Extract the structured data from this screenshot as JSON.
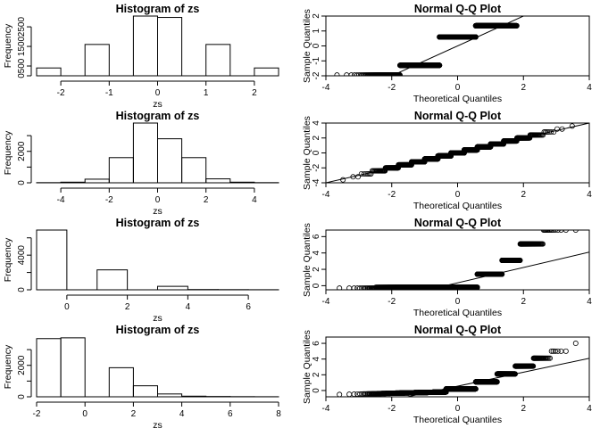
{
  "chart_data": [
    {
      "type": "bar",
      "title": "Histogram of zs",
      "xlabel": "zs",
      "ylabel": "Frequency",
      "bins": [
        [
          -2.5,
          -2
        ],
        [
          -2,
          -1.5
        ],
        [
          -1.5,
          -1
        ],
        [
          -1,
          -0.5
        ],
        [
          -0.5,
          0
        ],
        [
          0,
          0.5
        ],
        [
          0.5,
          1
        ],
        [
          1,
          1.5
        ],
        [
          1.5,
          2
        ],
        [
          2,
          2.5
        ]
      ],
      "values": [
        400,
        0,
        1600,
        0,
        3050,
        2980,
        0,
        1600,
        0,
        400
      ],
      "xlim": [
        -2.5,
        2.5
      ],
      "ylim": [
        0,
        3050
      ],
      "xticks": [
        -2,
        -1,
        0,
        1,
        2
      ],
      "yticks": [
        0,
        500,
        1500,
        2500
      ],
      "ytick_labels": [
        "0",
        "500",
        "1500",
        "2500"
      ]
    },
    {
      "type": "scatter",
      "title": "Normal Q-Q Plot",
      "xlabel": "Theoretical Quantiles",
      "ylabel": "Sample Quantiles",
      "xlim": [
        -4,
        4
      ],
      "ylim": [
        -2,
        2
      ],
      "xticks": [
        -4,
        -2,
        0,
        2,
        4
      ],
      "yticks": [
        -2,
        -1,
        0,
        1,
        2
      ],
      "steps": [
        [
          -2,
          -1.4
        ],
        [
          -1,
          -0.55
        ],
        [
          0,
          0.55
        ],
        [
          1,
          1.4
        ],
        [
          2,
          3.9
        ]
      ],
      "ref_line": [
        [
          -4,
          -4
        ],
        [
          4,
          4
        ]
      ]
    },
    {
      "type": "bar",
      "title": "Histogram of zs",
      "xlabel": "zs",
      "ylabel": "Frequency",
      "bins": [
        [
          -5,
          -4
        ],
        [
          -4,
          -3
        ],
        [
          -3,
          -2
        ],
        [
          -2,
          -1
        ],
        [
          -1,
          0
        ],
        [
          0,
          1
        ],
        [
          1,
          2
        ],
        [
          2,
          3
        ],
        [
          3,
          4
        ],
        [
          4,
          5
        ]
      ],
      "values": [
        10,
        40,
        230,
        1600,
        3800,
        2800,
        1600,
        250,
        40,
        10
      ],
      "xlim": [
        -5,
        5
      ],
      "ylim": [
        0,
        3800
      ],
      "xticks": [
        -4,
        -2,
        0,
        2,
        4
      ],
      "yticks": [
        0,
        1000,
        2000,
        3000
      ],
      "ytick_labels": [
        "0",
        "",
        "2000",
        ""
      ]
    },
    {
      "type": "scatter",
      "title": "Normal Q-Q Plot",
      "xlabel": "Theoretical Quantiles",
      "ylabel": "Sample Quantiles",
      "xlim": [
        -4,
        4
      ],
      "ylim": [
        -4,
        4
      ],
      "xticks": [
        -4,
        -2,
        0,
        2,
        4
      ],
      "yticks": [
        -4,
        -2,
        0,
        2,
        4
      ],
      "ref_line": [
        [
          -4.2,
          -4.2
        ],
        [
          4.2,
          4.2
        ]
      ]
    },
    {
      "type": "bar",
      "title": "Histogram of zs",
      "xlabel": "zs",
      "ylabel": "Frequency",
      "bins": [
        [
          -1,
          0
        ],
        [
          0,
          1
        ],
        [
          1,
          2
        ],
        [
          2,
          3
        ],
        [
          3,
          4
        ],
        [
          4,
          5
        ],
        [
          5,
          6
        ],
        [
          6,
          7
        ]
      ],
      "values": [
        6900,
        0,
        2300,
        0,
        400,
        30,
        20,
        10
      ],
      "xlim": [
        -1,
        7
      ],
      "ylim": [
        0,
        6900
      ],
      "xticks": [
        0,
        2,
        4,
        6
      ],
      "yticks": [
        0,
        2000,
        4000,
        6000
      ],
      "ytick_labels": [
        "0",
        "",
        "4000",
        ""
      ]
    },
    {
      "type": "scatter",
      "title": "Normal Q-Q Plot",
      "xlabel": "Theoretical Quantiles",
      "ylabel": "Sample Quantiles",
      "xlim": [
        -4,
        4
      ],
      "ylim": [
        -0.5,
        6.8
      ],
      "xticks": [
        -4,
        -2,
        0,
        2,
        4
      ],
      "yticks": [
        0,
        2,
        4,
        6
      ],
      "steps": [
        [
          -4,
          -0.25,
          0.55
        ],
        [
          0.55,
          1.35,
          1.35
        ],
        [
          1.35,
          1.85,
          3.1
        ],
        [
          1.85,
          2.6,
          5.1
        ],
        [
          2.7,
          2.95,
          6.8
        ]
      ],
      "ref_line": [
        [
          -4,
          -3.4
        ],
        [
          4,
          4.1
        ]
      ]
    },
    {
      "type": "bar",
      "title": "Histogram of zs",
      "xlabel": "zs",
      "ylabel": "Frequency",
      "bins": [
        [
          -2,
          -1
        ],
        [
          -1,
          0
        ],
        [
          0,
          1
        ],
        [
          1,
          2
        ],
        [
          2,
          3
        ],
        [
          3,
          4
        ],
        [
          4,
          5
        ],
        [
          5,
          6
        ],
        [
          6,
          7
        ],
        [
          7,
          8
        ]
      ],
      "values": [
        3700,
        3750,
        0,
        1850,
        700,
        180,
        40,
        20,
        10,
        5
      ],
      "xlim": [
        -2,
        8
      ],
      "ylim": [
        0,
        3800
      ],
      "xticks": [
        -2,
        0,
        2,
        4,
        6,
        8
      ],
      "yticks": [
        0,
        1000,
        2000,
        3000
      ],
      "ytick_labels": [
        "0",
        "",
        "2000",
        ""
      ]
    },
    {
      "type": "scatter",
      "title": "Normal Q-Q Plot",
      "xlabel": "Theoretical Quantiles",
      "ylabel": "Sample Quantiles",
      "xlim": [
        -4,
        4
      ],
      "ylim": [
        -0.8,
        6.8
      ],
      "xticks": [
        -4,
        -2,
        0,
        2,
        4
      ],
      "yticks": [
        0,
        2,
        4,
        6
      ],
      "ref_line": [
        [
          -4,
          -3.0
        ],
        [
          4,
          4.1
        ]
      ]
    }
  ]
}
